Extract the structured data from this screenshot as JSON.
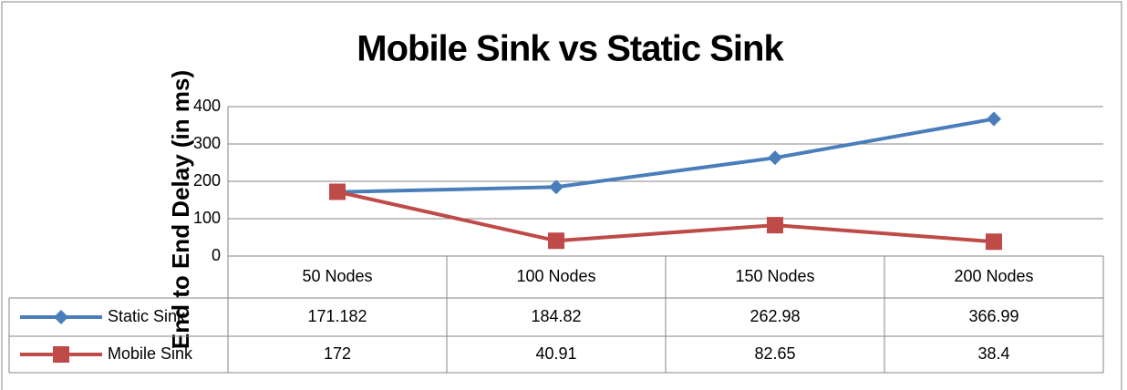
{
  "chart_data": {
    "type": "line",
    "title": "Mobile Sink vs Static Sink",
    "y_label": "End to End Delay (in ms)",
    "categories": [
      "50 Nodes",
      "100 Nodes",
      "150 Nodes",
      "200 Nodes"
    ],
    "series": [
      {
        "name": "Static Sink",
        "color": "#4a7ebb",
        "marker": "diamond",
        "values": [
          171.182,
          184.82,
          262.98,
          366.99
        ]
      },
      {
        "name": "Mobile Sink",
        "color": "#be4b48",
        "marker": "square",
        "values": [
          172,
          40.91,
          82.65,
          38.4
        ]
      }
    ],
    "ylim": [
      0,
      400
    ],
    "yticks": [
      0,
      100,
      200,
      300,
      400
    ],
    "grid": true,
    "data_table": true
  }
}
